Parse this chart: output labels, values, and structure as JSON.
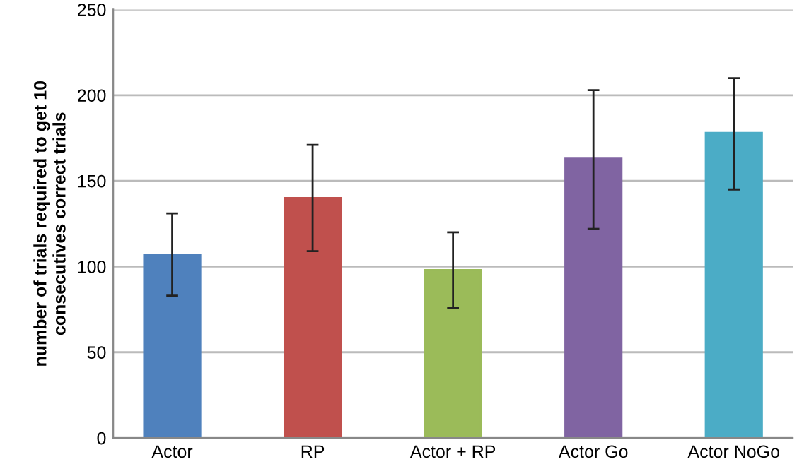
{
  "chart_data": {
    "type": "bar",
    "ylabel": "number of trials required to get 10\nconsecutives correct trials",
    "categories": [
      "Actor",
      "RP",
      "Actor + RP",
      "Actor Go",
      "Actor NoGo"
    ],
    "values": [
      107,
      140,
      98,
      163,
      178
    ],
    "colors": [
      "#4f81bd",
      "#c0504d",
      "#9bbb59",
      "#8064a2",
      "#4bacc6"
    ],
    "errors": [
      [
        83,
        131
      ],
      [
        109,
        171
      ],
      [
        76,
        120
      ],
      [
        122,
        203
      ],
      [
        145,
        210
      ]
    ],
    "ylim": [
      0,
      250
    ],
    "yticks": [
      0,
      50,
      100,
      150,
      200,
      250
    ],
    "grid": "y"
  }
}
